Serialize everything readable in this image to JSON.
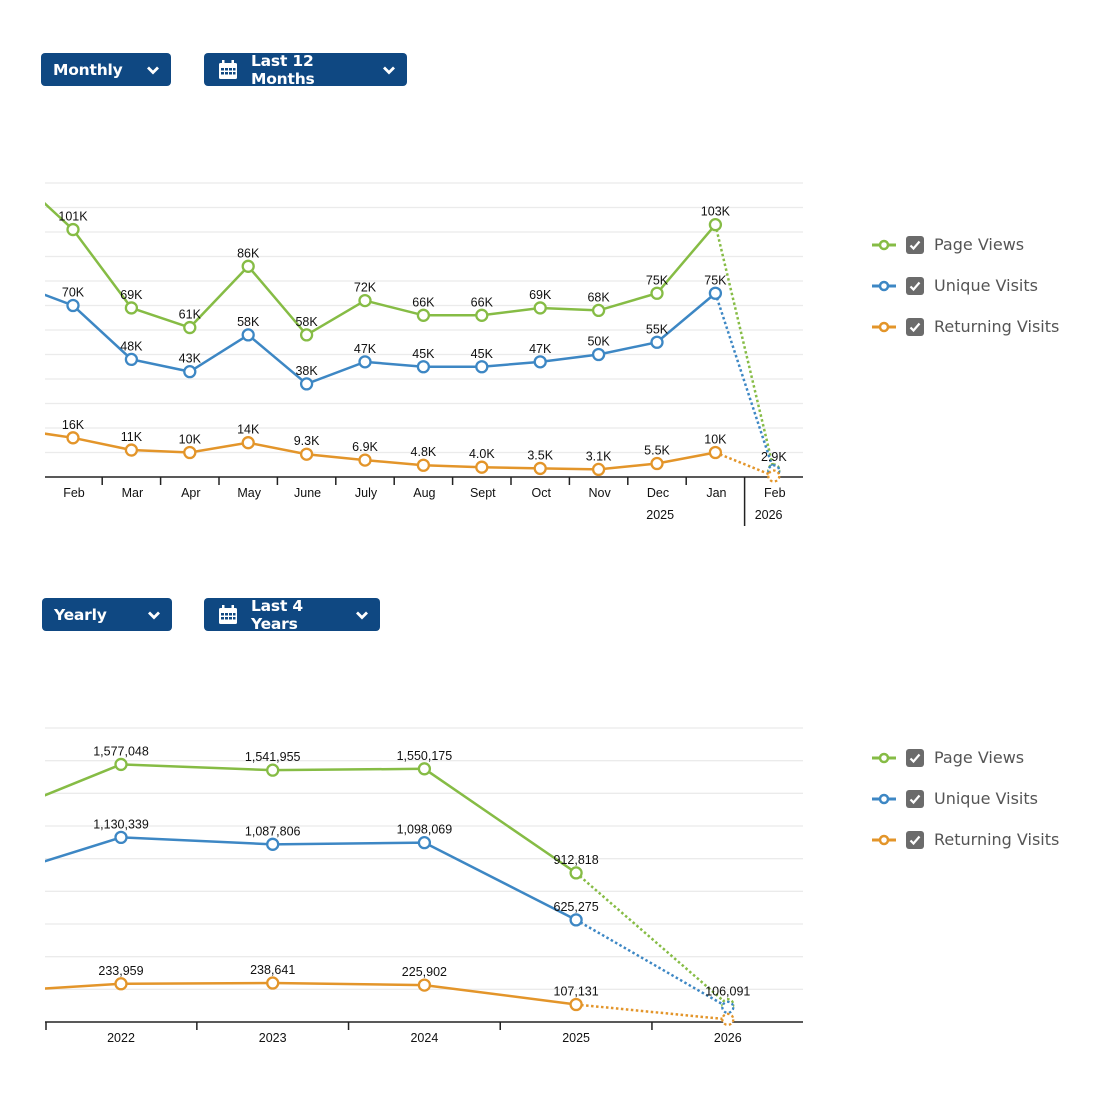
{
  "colors": {
    "button": "#0f4882",
    "page_views": "#86bc45",
    "unique_visits": "#3d87c4",
    "returning_visits": "#e3952a",
    "grid": "#ebebeb",
    "axis": "#222222"
  },
  "monthly_section": {
    "period_select": {
      "label": "Monthly",
      "icon": "chevron-down-icon"
    },
    "range_select": {
      "label": "Last 12 Months",
      "icon": "calendar-icon"
    },
    "legend": [
      {
        "label": "Page Views",
        "checked": true
      },
      {
        "label": "Unique Visits",
        "checked": true
      },
      {
        "label": "Returning Visits",
        "checked": true
      }
    ]
  },
  "yearly_section": {
    "period_select": {
      "label": "Yearly",
      "icon": "chevron-down-icon"
    },
    "range_select": {
      "label": "Last 4 Years",
      "icon": "calendar-icon"
    },
    "legend": [
      {
        "label": "Page Views",
        "checked": true
      },
      {
        "label": "Unique Visits",
        "checked": true
      },
      {
        "label": "Returning Visits",
        "checked": true
      }
    ]
  },
  "chart_data": [
    {
      "type": "line",
      "categories": [
        "Feb",
        "Mar",
        "Apr",
        "May",
        "June",
        "July",
        "Aug",
        "Sept",
        "Oct",
        "Nov",
        "Dec",
        "Jan",
        "Feb"
      ],
      "year_labels": [
        {
          "after_index": 10,
          "label": "2025"
        },
        {
          "after_index": 11,
          "label": "2026"
        }
      ],
      "ylim": [
        0,
        120000
      ],
      "grid_step": 10000,
      "grid": true,
      "last_segment_dotted": true,
      "legend": "right",
      "series": [
        {
          "name": "Page Views",
          "prior": 123000,
          "values": [
            101000,
            69000,
            61000,
            86000,
            58000,
            72000,
            66000,
            66000,
            69000,
            68000,
            75000,
            103000,
            2900
          ],
          "labels": [
            "101K",
            "69K",
            "61K",
            "86K",
            "58K",
            "72K",
            "66K",
            "66K",
            "69K",
            "68K",
            "75K",
            "103K",
            "2.9K"
          ]
        },
        {
          "name": "Unique Visits",
          "prior": 79000,
          "values": [
            70000,
            48000,
            43000,
            58000,
            38000,
            47000,
            45000,
            45000,
            47000,
            50000,
            55000,
            75000,
            2500
          ],
          "labels": [
            "70K",
            "48K",
            "43K",
            "58K",
            "38K",
            "47K",
            "45K",
            "45K",
            "47K",
            "50K",
            "55K",
            "75K",
            null
          ]
        },
        {
          "name": "Returning Visits",
          "prior": 19500,
          "values": [
            16000,
            11000,
            10000,
            14000,
            9300,
            6900,
            4800,
            4000,
            3500,
            3100,
            5500,
            10000,
            400
          ],
          "labels": [
            "16K",
            "11K",
            "10K",
            "14K",
            "9.3K",
            "6.9K",
            "4.8K",
            "4.0K",
            "3.5K",
            "3.1K",
            "5.5K",
            "10K",
            null
          ]
        }
      ]
    },
    {
      "type": "line",
      "categories": [
        "2022",
        "2023",
        "2024",
        "2025",
        "2026"
      ],
      "ylim": [
        0,
        1800000
      ],
      "grid_step": 200000,
      "grid": true,
      "last_segment_dotted": true,
      "legend": "right",
      "series": [
        {
          "name": "Page Views",
          "prior": 1200000,
          "values": [
            1577048,
            1541955,
            1550175,
            912818,
            106091
          ],
          "labels": [
            "1,577,048",
            "1,541,955",
            "1,550,175",
            "912,818",
            "106,091"
          ]
        },
        {
          "name": "Unique Visits",
          "prior": 840000,
          "values": [
            1130339,
            1087806,
            1098069,
            625275,
            90000
          ],
          "labels": [
            "1,130,339",
            "1,087,806",
            "1,098,069",
            "625,275",
            null
          ]
        },
        {
          "name": "Returning Visits",
          "prior": 176000,
          "values": [
            233959,
            238641,
            225902,
            107131,
            16000
          ],
          "labels": [
            "233,959",
            "238,641",
            "225,902",
            "107,131",
            null
          ]
        }
      ]
    }
  ]
}
